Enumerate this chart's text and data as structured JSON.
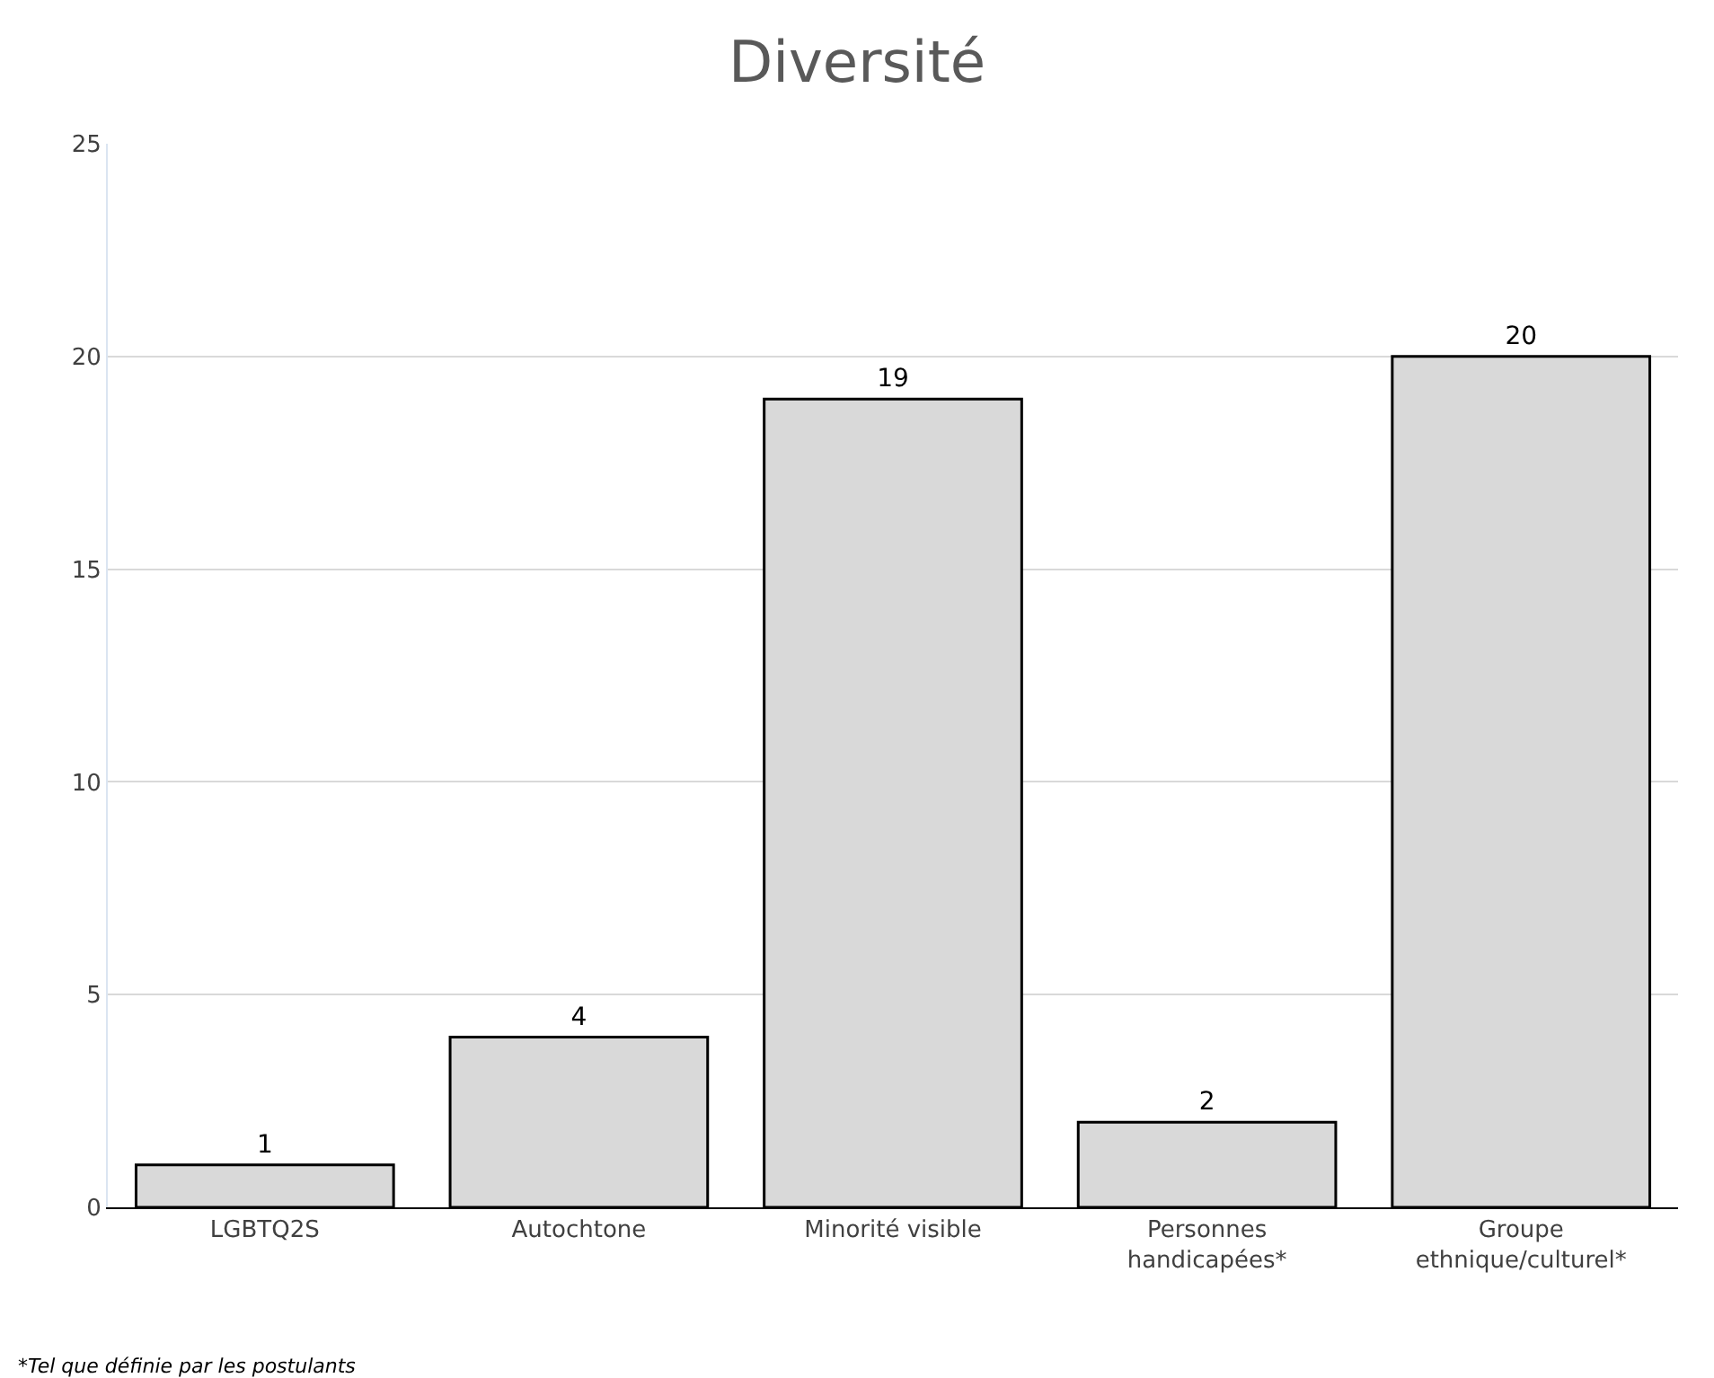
{
  "chart_data": {
    "type": "bar",
    "title": "Diversité",
    "categories": [
      "LGBTQ2S",
      "Autochtone",
      "Minorité visible",
      "Personnes handicapées*",
      "Groupe ethnique/culturel*"
    ],
    "values": [
      1,
      4,
      19,
      2,
      20
    ],
    "color": "#d9d9d9",
    "ylim": [
      0,
      25
    ],
    "yticks": [
      0,
      5,
      10,
      15,
      20,
      25
    ],
    "grid": "y",
    "data_labels": true,
    "annotations": [
      "*Tel que définie par les postulants"
    ]
  }
}
